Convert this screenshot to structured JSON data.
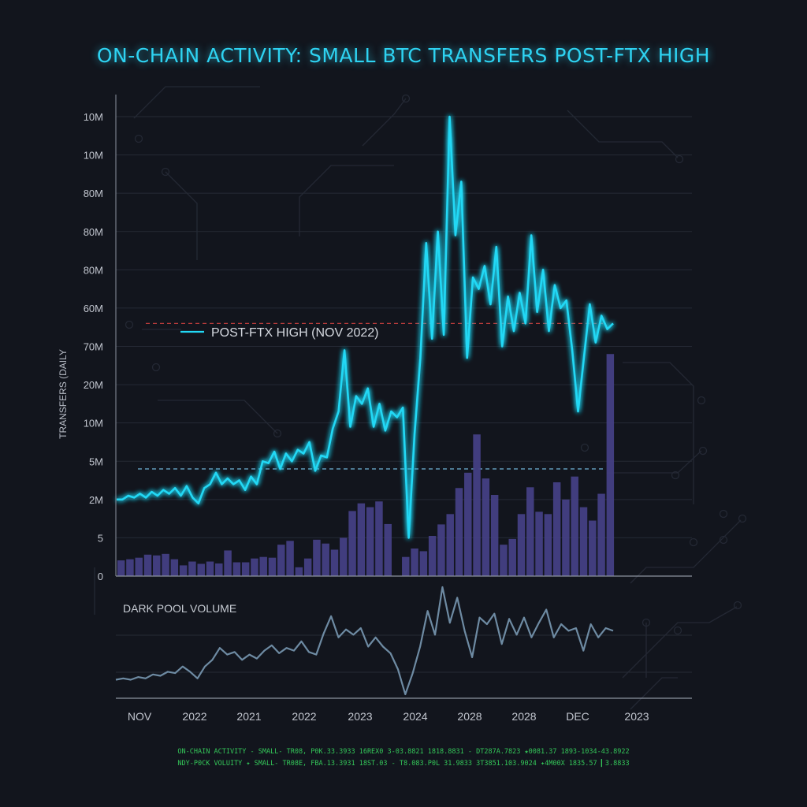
{
  "title": "ON-CHAIN ACTIVITY: SMALL BTC TRANSFERS POST-FTX HIGH",
  "colors": {
    "background": "#12151d",
    "title": "#2ed3f2",
    "line": "#22d8f5",
    "bars": "#443f84",
    "dark_pool_line": "#6e8ba3",
    "red_reference": "#b23a3a",
    "blue_reference": "#6fb4d9",
    "footer_text": "#34c759"
  },
  "chart_data": [
    {
      "type": "line",
      "title": "ON-CHAIN ACTIVITY: SMALL BTC TRANSFERS POST-FTX HIGH",
      "ylabel": "TRANSFERS (DAILY",
      "xlabel": "",
      "y_tick_labels": [
        "0",
        "5",
        "2M",
        "5M",
        "10M",
        "20M",
        "70M",
        "60M",
        "80M",
        "80M",
        "80M",
        "10M",
        "10M"
      ],
      "y_tick_values": [
        0,
        1,
        2,
        3,
        4,
        5,
        6,
        7,
        8,
        9,
        10,
        11,
        12
      ],
      "ylim": [
        0,
        12
      ],
      "x_tick_labels": [
        "NOV",
        "2022",
        "2021",
        "2022",
        "2023",
        "2024",
        "2028",
        "2028",
        "DEC",
        "2023"
      ],
      "grid": true,
      "legend": [
        {
          "label": "POST-FTX HIGH (NOV 2022)",
          "color": "#22d8f5"
        }
      ],
      "reference_lines": [
        {
          "y": 6.6,
          "color": "#b23a3a",
          "style": "dashed"
        },
        {
          "y": 2.8,
          "color": "#6fb4d9",
          "style": "dashed"
        }
      ],
      "series": [
        {
          "kind": "line",
          "values": [
            2.0,
            2.0,
            2.1,
            2.05,
            2.15,
            2.05,
            2.2,
            2.1,
            2.25,
            2.15,
            2.3,
            2.1,
            2.35,
            2.05,
            1.9,
            2.3,
            2.4,
            2.7,
            2.4,
            2.55,
            2.4,
            2.5,
            2.25,
            2.6,
            2.4,
            3.0,
            2.95,
            3.25,
            2.8,
            3.2,
            3.0,
            3.3,
            3.2,
            3.5,
            2.75,
            3.15,
            3.1,
            3.85,
            4.3,
            5.9,
            3.9,
            4.7,
            4.5,
            4.9,
            3.9,
            4.5,
            3.8,
            4.3,
            4.15,
            4.4,
            1.0,
            3.7,
            5.7,
            8.7,
            6.2,
            9.0,
            6.3,
            12.0,
            8.9,
            10.3,
            5.7,
            7.8,
            7.5,
            8.1,
            7.1,
            8.6,
            6.0,
            7.3,
            6.4,
            7.4,
            6.6,
            8.9,
            6.9,
            8.0,
            6.4,
            7.6,
            7.0,
            7.2,
            5.9,
            4.3,
            5.7,
            7.1,
            6.1,
            6.8,
            6.45,
            6.6
          ]
        },
        {
          "kind": "bar",
          "values": [
            0.41,
            0.44,
            0.48,
            0.56,
            0.54,
            0.58,
            0.44,
            0.28,
            0.38,
            0.32,
            0.38,
            0.33,
            0.67,
            0.36,
            0.36,
            0.46,
            0.5,
            0.48,
            0.82,
            0.92,
            0.23,
            0.46,
            0.95,
            0.85,
            0.69,
            1.0,
            1.7,
            1.9,
            1.8,
            1.95,
            1.36,
            0,
            0.5,
            0.72,
            0.65,
            1.05,
            1.35,
            1.62,
            2.3,
            2.7,
            3.7,
            2.55,
            2.12,
            0.82,
            0.97,
            1.62,
            2.32,
            1.68,
            1.62,
            2.45,
            2.0,
            2.6,
            1.8,
            1.45,
            2.15,
            5.8
          ]
        }
      ]
    },
    {
      "type": "line",
      "title": "DARK POOL VOLUME",
      "series": [
        {
          "values": [
            1.4,
            1.5,
            1.4,
            1.6,
            1.5,
            1.8,
            1.7,
            2.0,
            1.9,
            2.4,
            2.0,
            1.5,
            2.4,
            2.9,
            3.8,
            3.3,
            3.5,
            2.9,
            3.3,
            3.0,
            3.6,
            4.0,
            3.4,
            3.8,
            3.6,
            4.3,
            3.5,
            3.3,
            4.9,
            6.2,
            4.6,
            5.2,
            4.8,
            5.3,
            3.9,
            4.6,
            3.9,
            3.4,
            2.2,
            0.3,
            1.9,
            3.9,
            6.6,
            4.8,
            8.4,
            5.7,
            7.6,
            5.1,
            3.1,
            6.1,
            5.6,
            6.4,
            4.1,
            6.0,
            4.8,
            6.1,
            4.6,
            5.7,
            6.7,
            4.6,
            5.6,
            5.1,
            5.3,
            3.6,
            5.6,
            4.6,
            5.3,
            5.1
          ]
        }
      ]
    }
  ],
  "footer": {
    "line1": "ON-CHAIN ACTIVITY - SMALL- TR08, P0K.33.3933  16REX0 3-03.8821 1818.8831 - DT287A.7823  ★0081.37 1893-1034-43.8922",
    "line2": "NDY-P0CK VOLUITY ✦ SMALL- TR08E, FBA.13.3931  18ST.03 - T8.083.P0L 31.9833  3T3851.103.9024  ✦4M00X 1835.57 ▎3.8833"
  }
}
